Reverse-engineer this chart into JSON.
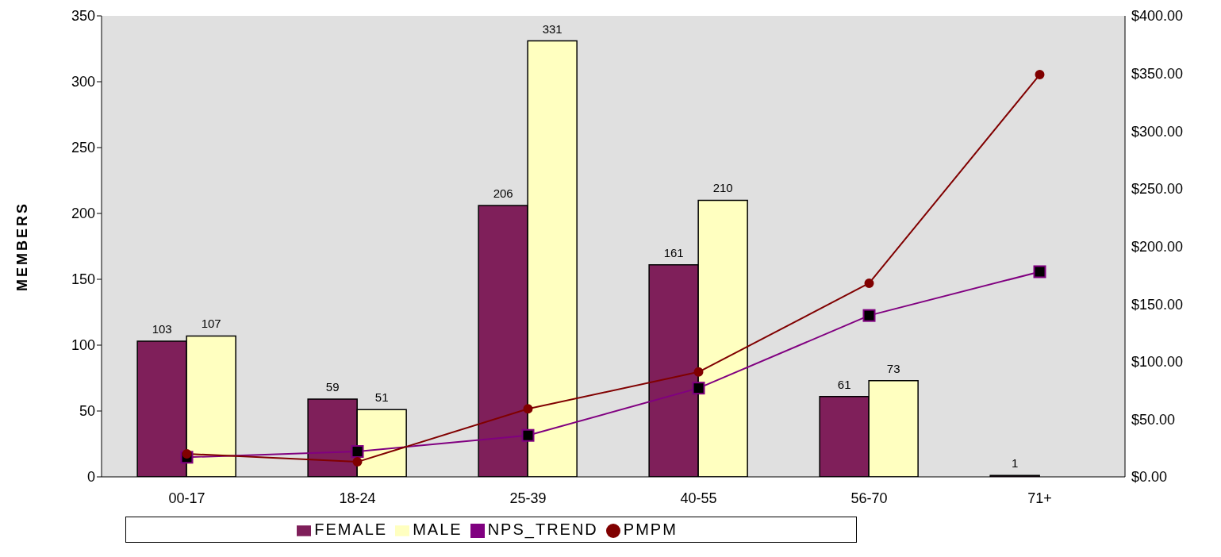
{
  "chart_data": {
    "type": "bar",
    "ylabel": "MEMBERS",
    "categories": [
      "00-17",
      "18-24",
      "25-39",
      "40-55",
      "56-70",
      "71+"
    ],
    "series": [
      {
        "name": "FEMALE",
        "color": "#7f1f5a",
        "values": [
          103,
          59,
          206,
          161,
          61,
          1
        ],
        "value_labels": [
          "103",
          "59",
          "206",
          "161",
          "61",
          "1"
        ]
      },
      {
        "name": "MALE",
        "color": "#ffffc0",
        "values": [
          107,
          51,
          331,
          210,
          73,
          null
        ],
        "value_labels": [
          "107",
          "51",
          "331",
          "210",
          "73",
          null
        ]
      },
      {
        "name": "NPS_TREND",
        "type": "line",
        "axis": "y2",
        "marker": "square",
        "color": "#800080",
        "values": [
          17,
          22,
          36,
          77,
          140,
          178
        ]
      },
      {
        "name": "PMPM",
        "type": "line",
        "axis": "y2",
        "marker": "circle",
        "color": "#800000",
        "values": [
          20,
          13,
          59,
          91,
          168,
          349
        ]
      }
    ],
    "ylim": [
      0,
      350
    ],
    "yticks": [
      0,
      50,
      100,
      150,
      200,
      250,
      300,
      350
    ],
    "y2lim": [
      0,
      400
    ],
    "y2ticks": [
      {
        "value": 0,
        "label": "$0.00"
      },
      {
        "value": 50,
        "label": "$50.00"
      },
      {
        "value": 100,
        "label": "$100.00"
      },
      {
        "value": 150,
        "label": "$150.00"
      },
      {
        "value": 200,
        "label": "$200.00"
      },
      {
        "value": 250,
        "label": "$250.00"
      },
      {
        "value": 300,
        "label": "$300.00"
      },
      {
        "value": 350,
        "label": "$350.00"
      },
      {
        "value": 400,
        "label": "$400.00"
      }
    ],
    "grid": false,
    "legend": "bottom"
  }
}
